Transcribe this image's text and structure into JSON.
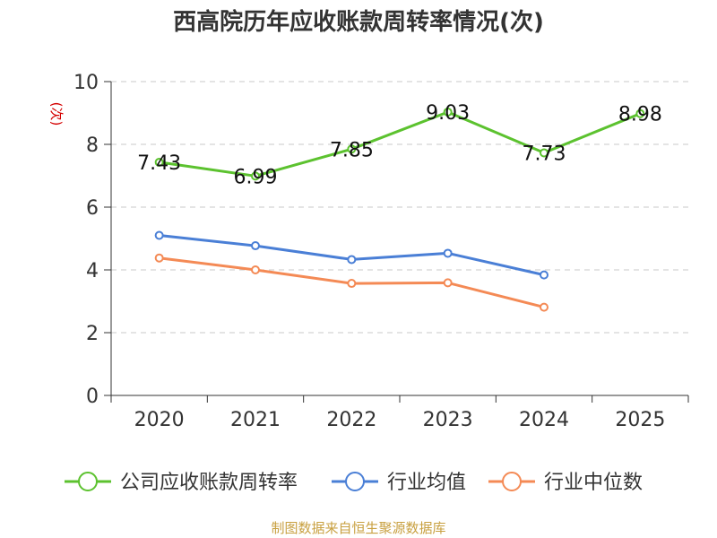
{
  "chart_data": {
    "type": "line",
    "title": "西高院历年应收账款周转率情况(次)",
    "ylabel": "(次)",
    "xlabel": "",
    "categories": [
      "2020",
      "2021",
      "2022",
      "2023",
      "2024",
      "2025"
    ],
    "ylim": [
      0,
      10
    ],
    "yticks": [
      0,
      2,
      4,
      6,
      8,
      10
    ],
    "grid": true,
    "legend_position": "bottom",
    "series": [
      {
        "name": "公司应收账款周转率",
        "color": "#5cc22f",
        "values": [
          7.43,
          6.99,
          7.85,
          9.03,
          7.73,
          8.98
        ],
        "labels": [
          "7.43",
          "6.99",
          "7.85",
          "9.03",
          "7.73",
          "8.98"
        ]
      },
      {
        "name": "行业均值",
        "color": "#4a7fd6",
        "values": [
          5.1,
          4.77,
          4.33,
          4.53,
          3.84,
          null
        ]
      },
      {
        "name": "行业中位数",
        "color": "#f48a55",
        "values": [
          4.38,
          4.0,
          3.57,
          3.59,
          2.81,
          null
        ]
      }
    ]
  },
  "source": "制图数据来自恒生聚源数据库"
}
